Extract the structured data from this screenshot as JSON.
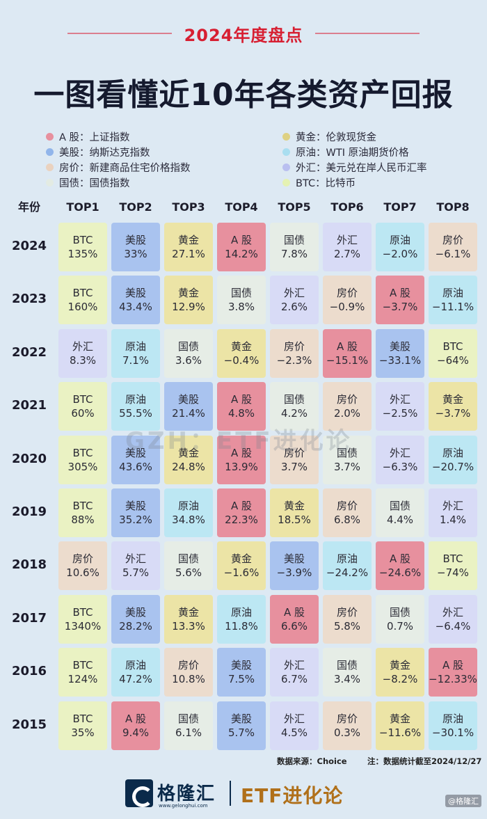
{
  "header": {
    "subtitle": "2024年度盘点",
    "title": "一图看懂近10年各类资产回报"
  },
  "legend": [
    {
      "key": "A股",
      "desc": "A 股：上证指数",
      "color": "#e7909e"
    },
    {
      "key": "黄金",
      "desc": "黄金：伦敦现货金",
      "color": "#ded183"
    },
    {
      "key": "美股",
      "desc": "美股：纳斯达克指数",
      "color": "#91b5ea"
    },
    {
      "key": "原油",
      "desc": "原油：WTI 原油期货价格",
      "color": "#a9def0"
    },
    {
      "key": "房价",
      "desc": "房价：新建商品住宅价格指数",
      "color": "#ead2bf"
    },
    {
      "key": "外汇",
      "desc": "外汇：美元兑在岸人民币汇率",
      "color": "#b9bff0"
    },
    {
      "key": "国债",
      "desc": "国债：国债指数",
      "color": "#e3ebe3"
    },
    {
      "key": "BTC",
      "desc": "BTC：比特币",
      "color": "#e5f2b3"
    }
  ],
  "columns": [
    "年份",
    "TOP1",
    "TOP2",
    "TOP3",
    "TOP4",
    "TOP5",
    "TOP6",
    "TOP7",
    "TOP8"
  ],
  "colors": {
    "A股": "#e7909e",
    "黄金": "#ece4a6",
    "美股": "#a9c3ef",
    "原油": "#bce7f3",
    "房价": "#ecdccd",
    "外汇": "#d8dbf6",
    "国债": "#e6ede6",
    "BTC": "#eaf2c3"
  },
  "chart_data": {
    "type": "table",
    "title": "一图看懂近10年各类资产回报",
    "rows": [
      {
        "year": "2024",
        "cells": [
          [
            "BTC",
            "135%"
          ],
          [
            "美股",
            "33%"
          ],
          [
            "黄金",
            "27.1%"
          ],
          [
            "A股",
            "14.2%"
          ],
          [
            "国债",
            "7.8%"
          ],
          [
            "外汇",
            "2.7%"
          ],
          [
            "原油",
            "−2.0%"
          ],
          [
            "房价",
            "−6.1%"
          ]
        ]
      },
      {
        "year": "2023",
        "cells": [
          [
            "BTC",
            "160%"
          ],
          [
            "美股",
            "43.4%"
          ],
          [
            "黄金",
            "12.9%"
          ],
          [
            "国债",
            "3.8%"
          ],
          [
            "外汇",
            "2.6%"
          ],
          [
            "房价",
            "−0.9%"
          ],
          [
            "A股",
            "−3.7%"
          ],
          [
            "原油",
            "−11.1%"
          ]
        ]
      },
      {
        "year": "2022",
        "cells": [
          [
            "外汇",
            "8.3%"
          ],
          [
            "原油",
            "7.1%"
          ],
          [
            "国债",
            "3.6%"
          ],
          [
            "黄金",
            "−0.4%"
          ],
          [
            "房价",
            "−2.3%"
          ],
          [
            "A股",
            "−15.1%"
          ],
          [
            "美股",
            "−33.1%"
          ],
          [
            "BTC",
            "−64%"
          ]
        ]
      },
      {
        "year": "2021",
        "cells": [
          [
            "BTC",
            "60%"
          ],
          [
            "原油",
            "55.5%"
          ],
          [
            "美股",
            "21.4%"
          ],
          [
            "A股",
            "4.8%"
          ],
          [
            "国债",
            "4.2%"
          ],
          [
            "房价",
            "2.0%"
          ],
          [
            "外汇",
            "−2.5%"
          ],
          [
            "黄金",
            "−3.7%"
          ]
        ]
      },
      {
        "year": "2020",
        "cells": [
          [
            "BTC",
            "305%"
          ],
          [
            "美股",
            "43.6%"
          ],
          [
            "黄金",
            "24.8%"
          ],
          [
            "A股",
            "13.9%"
          ],
          [
            "房价",
            "3.7%"
          ],
          [
            "国债",
            "3.7%"
          ],
          [
            "外汇",
            "−6.3%"
          ],
          [
            "原油",
            "−20.7%"
          ]
        ]
      },
      {
        "year": "2019",
        "cells": [
          [
            "BTC",
            "88%"
          ],
          [
            "美股",
            "35.2%"
          ],
          [
            "原油",
            "34.8%"
          ],
          [
            "A股",
            "22.3%"
          ],
          [
            "黄金",
            "18.5%"
          ],
          [
            "房价",
            "6.8%"
          ],
          [
            "国债",
            "4.4%"
          ],
          [
            "外汇",
            "1.4%"
          ]
        ]
      },
      {
        "year": "2018",
        "cells": [
          [
            "房价",
            "10.6%"
          ],
          [
            "外汇",
            "5.7%"
          ],
          [
            "国债",
            "5.6%"
          ],
          [
            "黄金",
            "−1.6%"
          ],
          [
            "美股",
            "−3.9%"
          ],
          [
            "原油",
            "−24.2%"
          ],
          [
            "A股",
            "−24.6%"
          ],
          [
            "BTC",
            "−74%"
          ]
        ]
      },
      {
        "year": "2017",
        "cells": [
          [
            "BTC",
            "1340%"
          ],
          [
            "美股",
            "28.2%"
          ],
          [
            "黄金",
            "13.3%"
          ],
          [
            "原油",
            "11.8%"
          ],
          [
            "A股",
            "6.6%"
          ],
          [
            "房价",
            "5.8%"
          ],
          [
            "国债",
            "0.7%"
          ],
          [
            "外汇",
            "−6.4%"
          ]
        ]
      },
      {
        "year": "2016",
        "cells": [
          [
            "BTC",
            "124%"
          ],
          [
            "原油",
            "47.2%"
          ],
          [
            "房价",
            "10.8%"
          ],
          [
            "美股",
            "7.5%"
          ],
          [
            "外汇",
            "6.7%"
          ],
          [
            "国债",
            "3.4%"
          ],
          [
            "黄金",
            "−8.2%"
          ],
          [
            "A股",
            "−12.33%"
          ]
        ]
      },
      {
        "year": "2015",
        "cells": [
          [
            "BTC",
            "35%"
          ],
          [
            "A股",
            "9.4%"
          ],
          [
            "国债",
            "6.1%"
          ],
          [
            "美股",
            "5.7%"
          ],
          [
            "外汇",
            "4.5%"
          ],
          [
            "房价",
            "0.3%"
          ],
          [
            "黄金",
            "−11.6%"
          ],
          [
            "原油",
            "−30.1%"
          ]
        ]
      }
    ]
  },
  "labels": {
    "A股": "A 股"
  },
  "source": {
    "left": "数据来源：Choice",
    "right": "注：数据统计截至2024/12/27"
  },
  "watermark": "GZH：ETF进化论",
  "footer": {
    "brand": "格隆汇",
    "url": "www.gelonghui.com",
    "etf": "ETF进化论",
    "corner": "@格隆汇"
  }
}
